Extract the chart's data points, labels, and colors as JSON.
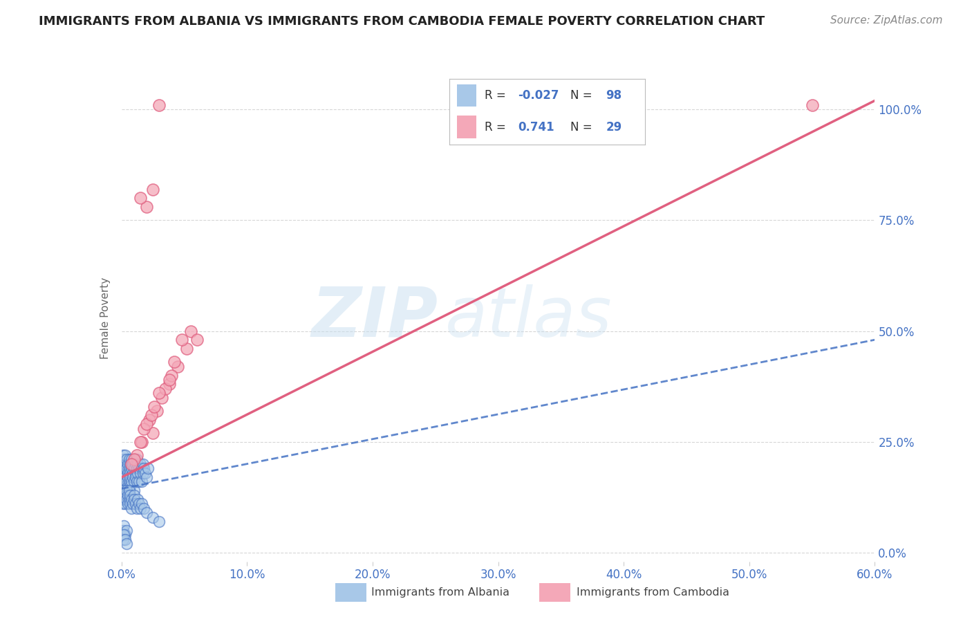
{
  "title": "IMMIGRANTS FROM ALBANIA VS IMMIGRANTS FROM CAMBODIA FEMALE POVERTY CORRELATION CHART",
  "source": "Source: ZipAtlas.com",
  "ylabel": "Female Poverty",
  "xlim": [
    0.0,
    0.6
  ],
  "ylim": [
    -0.02,
    1.08
  ],
  "albania_R": -0.027,
  "albania_N": 98,
  "cambodia_R": 0.741,
  "cambodia_N": 29,
  "albania_color": "#a8c8e8",
  "cambodia_color": "#f4a8b8",
  "albania_line_color": "#4472c4",
  "cambodia_line_color": "#e06080",
  "watermark_zip": "ZIP",
  "watermark_atlas": "atlas",
  "legend_label_albania": "Immigrants from Albania",
  "legend_label_cambodia": "Immigrants from Cambodia",
  "albania_x": [
    0.0,
    0.001,
    0.001,
    0.001,
    0.001,
    0.002,
    0.002,
    0.002,
    0.002,
    0.002,
    0.003,
    0.003,
    0.003,
    0.003,
    0.004,
    0.004,
    0.004,
    0.004,
    0.005,
    0.005,
    0.005,
    0.005,
    0.006,
    0.006,
    0.006,
    0.006,
    0.007,
    0.007,
    0.007,
    0.007,
    0.008,
    0.008,
    0.008,
    0.009,
    0.009,
    0.009,
    0.01,
    0.01,
    0.01,
    0.01,
    0.011,
    0.011,
    0.011,
    0.012,
    0.012,
    0.012,
    0.013,
    0.013,
    0.014,
    0.014,
    0.015,
    0.015,
    0.016,
    0.016,
    0.017,
    0.017,
    0.018,
    0.019,
    0.02,
    0.021,
    0.0,
    0.001,
    0.001,
    0.002,
    0.002,
    0.003,
    0.003,
    0.004,
    0.004,
    0.005,
    0.005,
    0.006,
    0.006,
    0.007,
    0.007,
    0.008,
    0.008,
    0.009,
    0.01,
    0.01,
    0.011,
    0.012,
    0.013,
    0.014,
    0.015,
    0.016,
    0.018,
    0.02,
    0.025,
    0.03,
    0.001,
    0.002,
    0.003,
    0.004,
    0.001,
    0.002,
    0.003,
    0.004
  ],
  "albania_y": [
    0.18,
    0.2,
    0.17,
    0.15,
    0.22,
    0.19,
    0.16,
    0.21,
    0.14,
    0.18,
    0.2,
    0.17,
    0.15,
    0.22,
    0.19,
    0.16,
    0.21,
    0.14,
    0.18,
    0.2,
    0.17,
    0.15,
    0.19,
    0.16,
    0.21,
    0.14,
    0.18,
    0.2,
    0.17,
    0.15,
    0.19,
    0.16,
    0.21,
    0.18,
    0.2,
    0.17,
    0.19,
    0.16,
    0.21,
    0.14,
    0.18,
    0.2,
    0.17,
    0.19,
    0.16,
    0.21,
    0.18,
    0.2,
    0.19,
    0.16,
    0.18,
    0.2,
    0.19,
    0.16,
    0.18,
    0.2,
    0.19,
    0.18,
    0.17,
    0.19,
    0.12,
    0.13,
    0.11,
    0.14,
    0.12,
    0.13,
    0.11,
    0.14,
    0.12,
    0.13,
    0.11,
    0.14,
    0.12,
    0.13,
    0.11,
    0.1,
    0.12,
    0.11,
    0.13,
    0.12,
    0.11,
    0.1,
    0.12,
    0.11,
    0.1,
    0.11,
    0.1,
    0.09,
    0.08,
    0.07,
    0.05,
    0.06,
    0.04,
    0.05,
    0.03,
    0.04,
    0.03,
    0.02
  ],
  "cambodia_x": [
    0.03,
    0.016,
    0.022,
    0.025,
    0.028,
    0.032,
    0.038,
    0.045,
    0.052,
    0.012,
    0.018,
    0.02,
    0.024,
    0.026,
    0.04,
    0.035,
    0.055,
    0.01,
    0.015,
    0.008,
    0.042,
    0.048,
    0.03,
    0.02,
    0.025,
    0.015,
    0.038,
    0.06,
    0.55
  ],
  "cambodia_y": [
    1.01,
    0.25,
    0.3,
    0.27,
    0.32,
    0.35,
    0.38,
    0.42,
    0.46,
    0.22,
    0.28,
    0.29,
    0.31,
    0.33,
    0.4,
    0.37,
    0.5,
    0.21,
    0.25,
    0.2,
    0.43,
    0.48,
    0.36,
    0.78,
    0.82,
    0.8,
    0.39,
    0.48,
    1.01
  ],
  "grid_color": "#cccccc",
  "tick_color": "#4472c4",
  "title_fontsize": 13,
  "source_fontsize": 11,
  "axis_fontsize": 12,
  "ylabel_fontsize": 11
}
